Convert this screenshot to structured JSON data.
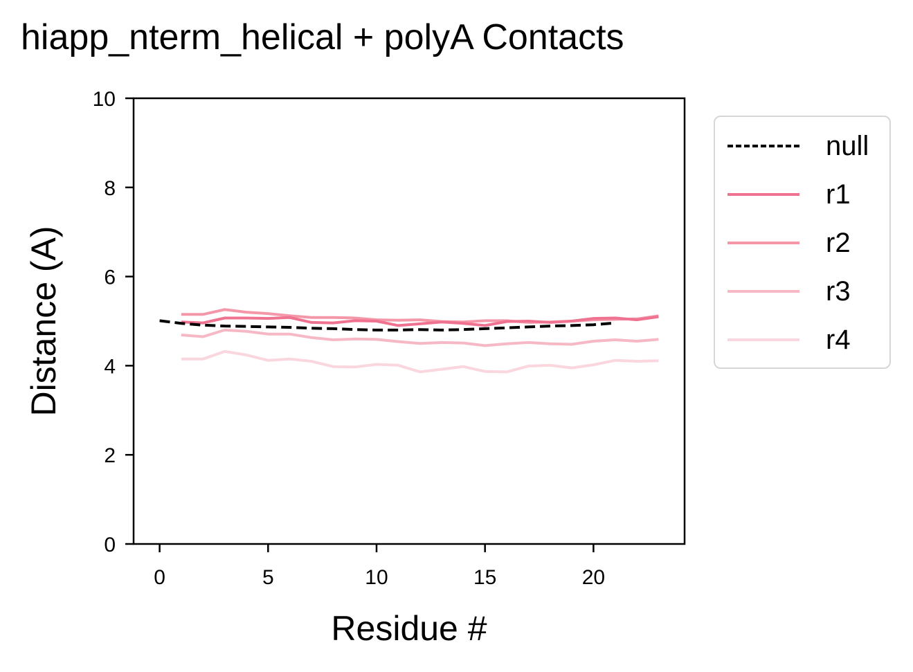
{
  "chart_data": {
    "type": "line",
    "title": "hiapp_nterm_helical + polyA Contacts",
    "xlabel": "Residue #",
    "ylabel": "Distance (A)",
    "xlim": [
      -1.2,
      24.2
    ],
    "ylim": [
      0,
      10
    ],
    "xticks": [
      0,
      5,
      10,
      15,
      20
    ],
    "yticks": [
      0,
      2,
      4,
      6,
      8,
      10
    ],
    "grid": false,
    "legend_position": "outside-right-top",
    "series": [
      {
        "name": "null",
        "color": "#000000",
        "style": "dashed",
        "x": [
          0,
          1,
          2,
          3,
          4,
          5,
          6,
          7,
          8,
          9,
          10,
          11,
          12,
          13,
          14,
          15,
          16,
          17,
          18,
          19,
          20,
          21
        ],
        "y": [
          5.01,
          4.95,
          4.91,
          4.89,
          4.88,
          4.87,
          4.86,
          4.84,
          4.83,
          4.81,
          4.8,
          4.8,
          4.81,
          4.8,
          4.81,
          4.83,
          4.85,
          4.87,
          4.89,
          4.9,
          4.92,
          4.96
        ]
      },
      {
        "name": "r1",
        "color": "#ef7391",
        "style": "solid",
        "x": [
          1,
          2,
          3,
          4,
          5,
          6,
          7,
          8,
          9,
          10,
          11,
          12,
          13,
          14,
          15,
          16,
          17,
          18,
          19,
          20,
          21,
          22,
          23
        ],
        "y": [
          4.98,
          4.96,
          5.07,
          5.07,
          5.06,
          5.08,
          4.97,
          4.96,
          5.01,
          5.0,
          4.9,
          4.94,
          4.98,
          4.95,
          4.9,
          4.99,
          5.0,
          4.97,
          5.0,
          5.06,
          5.07,
          5.03,
          5.1
        ]
      },
      {
        "name": "r2",
        "color": "#f498a9",
        "style": "solid",
        "x": [
          1,
          2,
          3,
          4,
          5,
          6,
          7,
          8,
          9,
          10,
          11,
          12,
          13,
          14,
          15,
          16,
          17,
          18,
          19,
          20,
          21,
          22,
          23
        ],
        "y": [
          5.15,
          5.15,
          5.26,
          5.2,
          5.17,
          5.12,
          5.08,
          5.08,
          5.07,
          5.03,
          5.02,
          5.03,
          4.99,
          4.98,
          5.01,
          5.01,
          4.97,
          4.98,
          5.0,
          5.03,
          5.04,
          5.05,
          5.12
        ]
      },
      {
        "name": "r3",
        "color": "#f7b8c5",
        "style": "solid",
        "x": [
          1,
          2,
          3,
          4,
          5,
          6,
          7,
          8,
          9,
          10,
          11,
          12,
          13,
          14,
          15,
          16,
          17,
          18,
          19,
          20,
          21,
          22,
          23
        ],
        "y": [
          4.69,
          4.65,
          4.8,
          4.77,
          4.71,
          4.71,
          4.63,
          4.58,
          4.6,
          4.59,
          4.54,
          4.5,
          4.52,
          4.51,
          4.45,
          4.49,
          4.52,
          4.49,
          4.48,
          4.55,
          4.58,
          4.55,
          4.59
        ]
      },
      {
        "name": "r4",
        "color": "#fad6de",
        "style": "solid",
        "x": [
          1,
          2,
          3,
          4,
          5,
          6,
          7,
          8,
          9,
          10,
          11,
          12,
          13,
          14,
          15,
          16,
          17,
          18,
          19,
          20,
          21,
          22,
          23
        ],
        "y": [
          4.15,
          4.15,
          4.32,
          4.24,
          4.12,
          4.15,
          4.1,
          3.98,
          3.97,
          4.03,
          4.01,
          3.86,
          3.92,
          3.98,
          3.87,
          3.86,
          3.99,
          4.01,
          3.95,
          4.02,
          4.12,
          4.1,
          4.11
        ]
      }
    ]
  }
}
